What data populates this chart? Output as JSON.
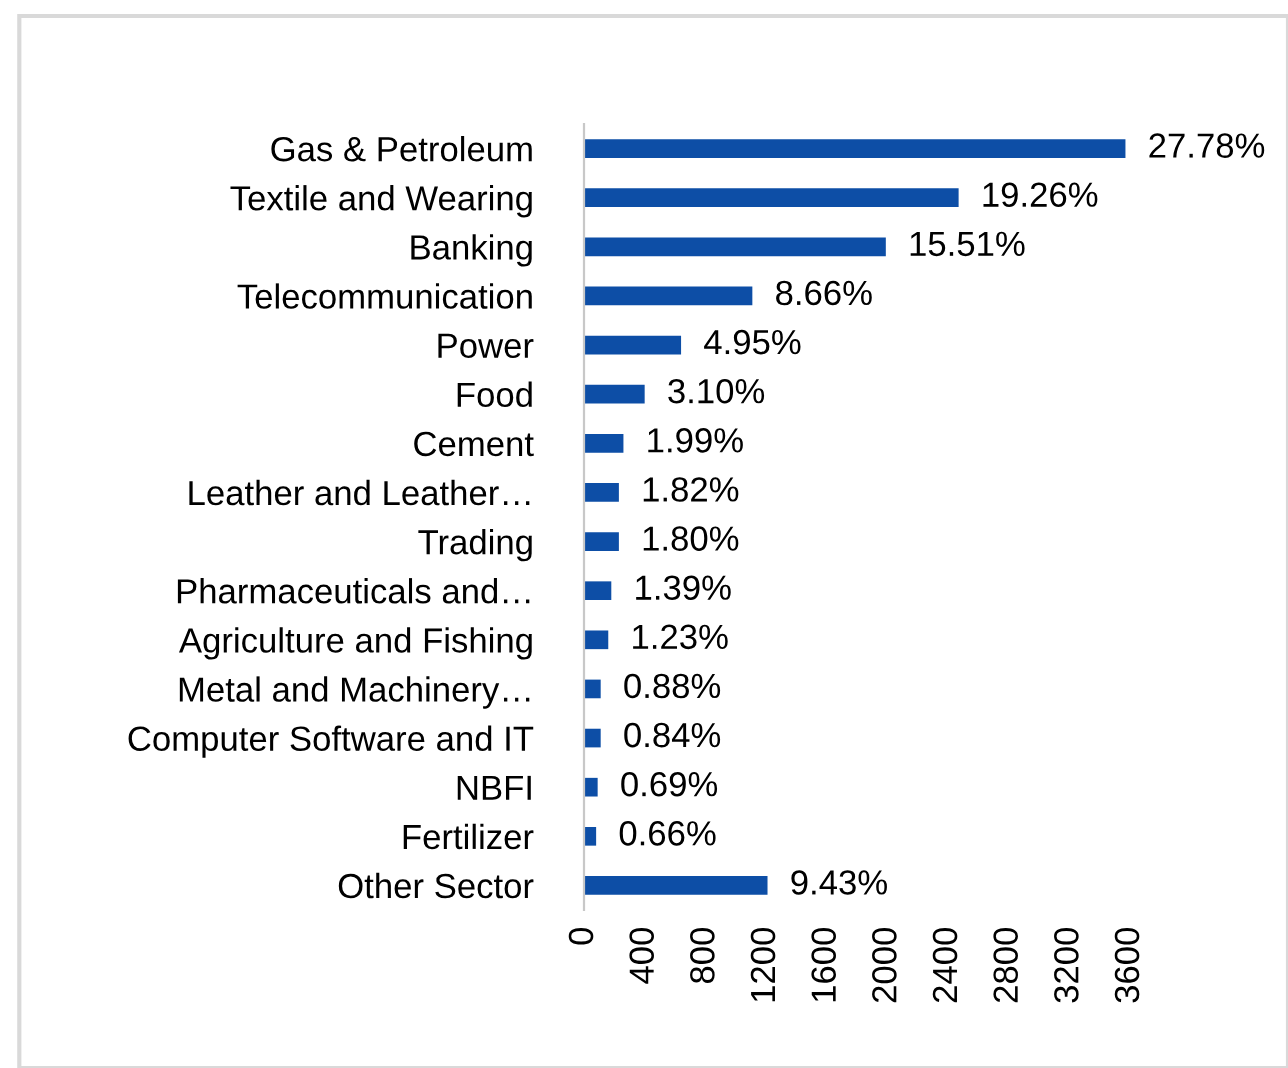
{
  "chart_data": {
    "type": "bar",
    "orientation": "horizontal",
    "categories": [
      "Gas & Petroleum",
      "Textile and Wearing",
      "Banking",
      "Telecommunication",
      "Power",
      "Food",
      "Cement",
      "Leather and Leather…",
      "Trading",
      "Pharmaceuticals and…",
      "Agriculture and Fishing",
      "Metal and Machinery…",
      "Computer Software and IT",
      "NBFI",
      "Fertilizer",
      "Other Sector"
    ],
    "values": [
      3570,
      2470,
      1990,
      1110,
      640,
      400,
      260,
      230,
      230,
      180,
      160,
      110,
      110,
      90,
      80,
      1210
    ],
    "annotations": [
      {
        "text": "27.78%",
        "x": 3570,
        "y": "Gas & Petroleum"
      },
      {
        "text": "19.26%",
        "x": 2470,
        "y": "Textile and Wearing"
      },
      {
        "text": "15.51%",
        "x": 1990,
        "y": "Banking"
      },
      {
        "text": "8.66%",
        "x": 1110,
        "y": "Telecommunication"
      },
      {
        "text": "4.95%",
        "x": 640,
        "y": "Power"
      },
      {
        "text": "3.10%",
        "x": 400,
        "y": "Food"
      },
      {
        "text": "1.99%",
        "x": 260,
        "y": "Cement"
      },
      {
        "text": "1.82%",
        "x": 230,
        "y": "Leather and Leather…"
      },
      {
        "text": "1.80%",
        "x": 230,
        "y": "Trading"
      },
      {
        "text": "1.39%",
        "x": 180,
        "y": "Pharmaceuticals and…"
      },
      {
        "text": "1.23%",
        "x": 160,
        "y": "Agriculture and Fishing"
      },
      {
        "text": "0.88%",
        "x": 110,
        "y": "Metal and Machinery…"
      },
      {
        "text": "0.84%",
        "x": 110,
        "y": "Computer Software and IT"
      },
      {
        "text": "0.69%",
        "x": 90,
        "y": "NBFI"
      },
      {
        "text": "0.66%",
        "x": 80,
        "y": "Fertilizer"
      },
      {
        "text": "9.43%",
        "x": 1210,
        "y": "Other Sector"
      }
    ],
    "color": "#0d4ea6",
    "xlim": [
      0,
      3600
    ],
    "xticks": [
      0,
      400,
      800,
      1200,
      1600,
      2000,
      2400,
      2800,
      3200,
      3600
    ],
    "grid": false,
    "legend": false
  }
}
